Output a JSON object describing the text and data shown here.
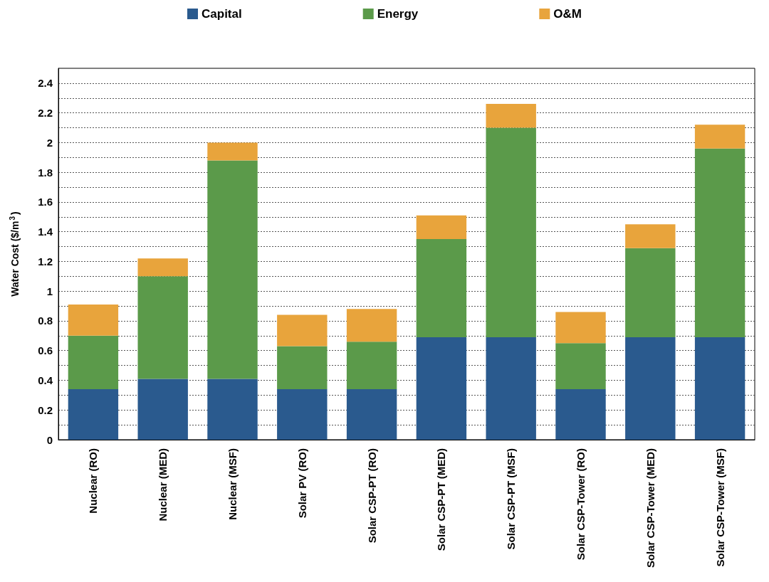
{
  "chart_data": {
    "type": "bar",
    "stacked": true,
    "ylabel": "Water Cost ($/m$^{3}$)",
    "categories": [
      "Nuclear (RO)",
      "Nuclear (MED)",
      "Nuclear (MSF)",
      "Solar PV (RO)",
      "Solar CSP-PT (RO)",
      "Solar CSP-PT (MED)",
      "Solar CSP-PT (MSF)",
      "Solar CSP-Tower (RO)",
      "Solar CSP-Tower (MED)",
      "Solar CSP-Tower (MSF)"
    ],
    "series": [
      {
        "name": "Capital",
        "color": "#2a5a8e",
        "values": [
          0.34,
          0.41,
          0.41,
          0.34,
          0.34,
          0.69,
          0.69,
          0.34,
          0.69,
          0.69
        ]
      },
      {
        "name": "Energy",
        "color": "#5b9a4a",
        "values": [
          0.36,
          0.69,
          1.47,
          0.29,
          0.32,
          0.66,
          1.41,
          0.31,
          0.6,
          1.27
        ]
      },
      {
        "name": "O&M",
        "color": "#e8a43c",
        "values": [
          0.21,
          0.12,
          0.12,
          0.21,
          0.22,
          0.16,
          0.16,
          0.21,
          0.16,
          0.16
        ]
      }
    ],
    "ylim": [
      0,
      2.5
    ],
    "yticks": [
      0,
      {
        "value": 0.1,
        "label": null
      },
      0.2,
      {
        "value": 0.3,
        "label": null
      },
      0.4,
      {
        "value": 0.5,
        "label": null
      },
      0.6,
      {
        "value": 0.7,
        "label": null
      },
      0.8,
      {
        "value": 0.9,
        "label": null
      },
      1,
      {
        "value": 1.1,
        "label": null
      },
      1.2,
      {
        "value": 1.3,
        "label": null
      },
      1.4,
      {
        "value": 1.5,
        "label": null
      },
      1.6,
      {
        "value": 1.7,
        "label": null
      },
      1.8,
      {
        "value": 1.9,
        "label": null
      },
      2,
      {
        "value": 2.1,
        "label": null
      },
      2.2,
      {
        "value": 2.3,
        "label": null
      },
      2.4
    ],
    "grid": "y",
    "legend": "top"
  }
}
